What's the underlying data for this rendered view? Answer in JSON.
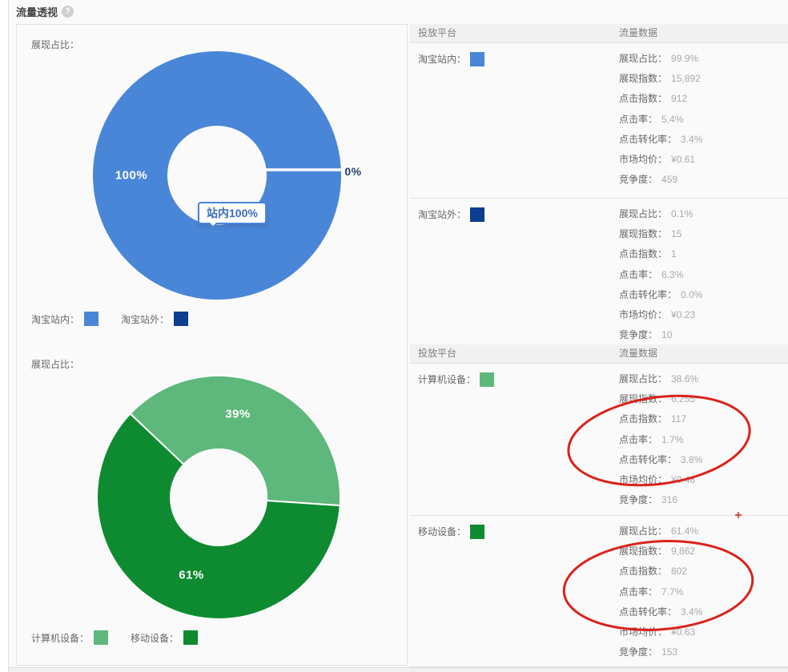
{
  "header": {
    "title": "流量透视",
    "help_glyph": "?"
  },
  "left": {
    "section1_label": "展现占比：",
    "section2_label": "展现占比：",
    "chart1_legend": [
      {
        "label": "淘宝站内：",
        "color": "#4a86d8"
      },
      {
        "label": "淘宝站外：",
        "color": "#0b3d91"
      }
    ],
    "chart2_legend": [
      {
        "label": "计算机设备：",
        "color": "#5eb87b"
      },
      {
        "label": "移动设备：",
        "color": "#0e8b31"
      }
    ]
  },
  "chart_data": [
    {
      "type": "pie",
      "title": "展现占比",
      "labels": [
        "淘宝站内",
        "淘宝站外"
      ],
      "values": [
        100,
        0
      ],
      "display_labels": [
        "100%",
        "0%"
      ],
      "colors": [
        "#4a86d8",
        "#0b3d91"
      ],
      "tooltip": "站内100%",
      "donut": true,
      "legend_position": "bottom"
    },
    {
      "type": "pie",
      "title": "展现占比",
      "labels": [
        "计算机设备",
        "移动设备"
      ],
      "values": [
        39,
        61
      ],
      "display_labels": [
        "39%",
        "61%"
      ],
      "colors": [
        "#5eb87b",
        "#0e8b31"
      ],
      "donut": true,
      "legend_position": "bottom"
    }
  ],
  "tables": [
    {
      "col1": "投放平台",
      "col2": "流量数据",
      "rows": [
        {
          "label": "淘宝站内：",
          "color": "#4a86d8",
          "metrics": [
            [
              "展现占比：",
              "99.9%"
            ],
            [
              "展现指数：",
              "15,892"
            ],
            [
              "点击指数：",
              "912"
            ],
            [
              "点击率：",
              "5.4%"
            ],
            [
              "点击转化率：",
              "3.4%"
            ],
            [
              "市场均价：",
              "¥0.61"
            ],
            [
              "竞争度：",
              "459"
            ]
          ]
        },
        {
          "label": "淘宝站外：",
          "color": "#0b3d91",
          "metrics": [
            [
              "展现占比：",
              "0.1%"
            ],
            [
              "展现指数：",
              "15"
            ],
            [
              "点击指数：",
              "1"
            ],
            [
              "点击率：",
              "6.3%"
            ],
            [
              "点击转化率：",
              "0.0%"
            ],
            [
              "市场均价：",
              "¥0.23"
            ],
            [
              "竞争度：",
              "10"
            ]
          ]
        }
      ]
    },
    {
      "col1": "投放平台",
      "col2": "流量数据",
      "rows": [
        {
          "label": "计算机设备：",
          "color": "#5eb87b",
          "metrics": [
            [
              "展现占比：",
              "38.6%"
            ],
            [
              "展现指数：",
              "6,255"
            ],
            [
              "点击指数：",
              "117"
            ],
            [
              "点击率：",
              "1.7%"
            ],
            [
              "点击转化率：",
              "3.8%"
            ],
            [
              "市场均价：",
              "¥0.48"
            ],
            [
              "竞争度：",
              "316"
            ]
          ]
        },
        {
          "label": "移动设备：",
          "color": "#0e8b31",
          "metrics": [
            [
              "展现占比：",
              "61.4%"
            ],
            [
              "展现指数：",
              "9,862"
            ],
            [
              "点击指数：",
              "802"
            ],
            [
              "点击率：",
              "7.7%"
            ],
            [
              "点击转化率：",
              "3.4%"
            ],
            [
              "市场均价：",
              "¥0.63"
            ],
            [
              "竞争度：",
              "153"
            ]
          ]
        }
      ]
    }
  ],
  "annotation_color": "#d9231b"
}
